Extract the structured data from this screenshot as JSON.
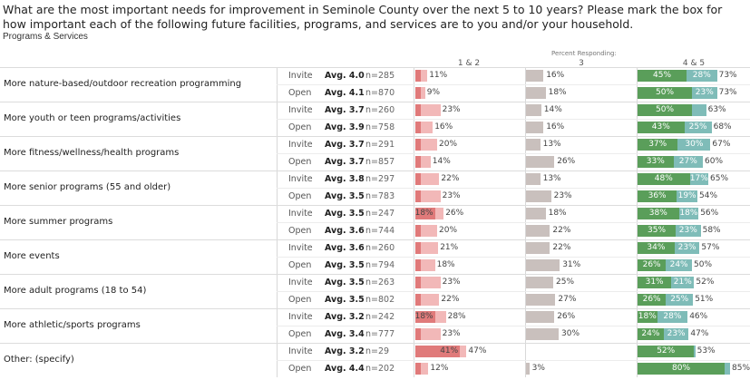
{
  "title": "What are the most important needs for improvement in Seminole County over the next 5 to 10 years? Please mark the box for how important each of the following future facilities, programs, and services are to you and/or your household.",
  "subtitle": "Programs & Services",
  "header": {
    "percent_responding": "Percent Responding:",
    "col_low": "1 & 2",
    "col_mid": "3",
    "col_high": "4 & 5"
  },
  "colors": {
    "low_light": "#f2b8b8",
    "low_dark": "#e07a7a",
    "mid": "#c9c0bd",
    "high_dark": "#5a9e5a",
    "high_light": "#7fbcb8"
  },
  "chart_data": {
    "type": "bar",
    "stacked_diverging": true,
    "columns": [
      "1 & 2",
      "3",
      "4 & 5"
    ],
    "categories": [
      "More nature-based/outdoor recreation programming",
      "More youth or teen programs/activities",
      "More fitness/wellness/health programs",
      "More senior programs (55 and older)",
      "More summer programs",
      "More events",
      "More adult programs (18 to 54)",
      "More athletic/sports programs",
      "Other: (specify)"
    ],
    "rows": [
      {
        "label": "More nature-based/outdoor recreation programming",
        "type": "Invite",
        "avg": "Avg. 4.0",
        "n": "n=285",
        "low_dark": 0,
        "low_total": "11%",
        "low_total_v": 11,
        "mid": "16%",
        "mid_v": 16,
        "high_dark": "45%",
        "high_dark_v": 45,
        "high_light": "28%",
        "high_light_v": 28,
        "high_total": "73%"
      },
      {
        "label": "More nature-based/outdoor recreation programming",
        "type": "Open",
        "avg": "Avg. 4.1",
        "n": "n=870",
        "low_dark": 0,
        "low_total": "9%",
        "low_total_v": 9,
        "mid": "18%",
        "mid_v": 18,
        "high_dark": "50%",
        "high_dark_v": 50,
        "high_light": "23%",
        "high_light_v": 23,
        "high_total": "73%"
      },
      {
        "label": "More youth or teen programs/activities",
        "type": "Invite",
        "avg": "Avg. 3.7",
        "n": "n=260",
        "low_dark": 0,
        "low_total": "23%",
        "low_total_v": 23,
        "mid": "14%",
        "mid_v": 14,
        "high_dark": "50%",
        "high_dark_v": 50,
        "high_light": "",
        "high_light_v": 13,
        "high_total": "63%"
      },
      {
        "label": "More youth or teen programs/activities",
        "type": "Open",
        "avg": "Avg. 3.9",
        "n": "n=758",
        "low_dark": 0,
        "low_total": "16%",
        "low_total_v": 16,
        "mid": "16%",
        "mid_v": 16,
        "high_dark": "43%",
        "high_dark_v": 43,
        "high_light": "25%",
        "high_light_v": 25,
        "high_total": "68%"
      },
      {
        "label": "More fitness/wellness/health programs",
        "type": "Invite",
        "avg": "Avg. 3.7",
        "n": "n=291",
        "low_dark": 0,
        "low_total": "20%",
        "low_total_v": 20,
        "mid": "13%",
        "mid_v": 13,
        "high_dark": "37%",
        "high_dark_v": 37,
        "high_light": "30%",
        "high_light_v": 30,
        "high_total": "67%"
      },
      {
        "label": "More fitness/wellness/health programs",
        "type": "Open",
        "avg": "Avg. 3.7",
        "n": "n=857",
        "low_dark": 0,
        "low_total": "14%",
        "low_total_v": 14,
        "mid": "26%",
        "mid_v": 26,
        "high_dark": "33%",
        "high_dark_v": 33,
        "high_light": "27%",
        "high_light_v": 27,
        "high_total": "60%"
      },
      {
        "label": "More senior programs (55 and older)",
        "type": "Invite",
        "avg": "Avg. 3.8",
        "n": "n=297",
        "low_dark": 0,
        "low_total": "22%",
        "low_total_v": 22,
        "mid": "13%",
        "mid_v": 13,
        "high_dark": "48%",
        "high_dark_v": 48,
        "high_light": "17%",
        "high_light_v": 17,
        "high_total": "65%"
      },
      {
        "label": "More senior programs (55 and older)",
        "type": "Open",
        "avg": "Avg. 3.5",
        "n": "n=783",
        "low_dark": 0,
        "low_total": "23%",
        "low_total_v": 23,
        "mid": "23%",
        "mid_v": 23,
        "high_dark": "36%",
        "high_dark_v": 36,
        "high_light": "19%",
        "high_light_v": 19,
        "high_total": "54%"
      },
      {
        "label": "More summer programs",
        "type": "Invite",
        "avg": "Avg. 3.5",
        "n": "n=247",
        "low_dark": "18%",
        "low_dark_v": 18,
        "low_total": "26%",
        "low_total_v": 26,
        "mid": "18%",
        "mid_v": 18,
        "high_dark": "38%",
        "high_dark_v": 38,
        "high_light": "18%",
        "high_light_v": 18,
        "high_total": "56%"
      },
      {
        "label": "More summer programs",
        "type": "Open",
        "avg": "Avg. 3.6",
        "n": "n=744",
        "low_dark": 0,
        "low_total": "20%",
        "low_total_v": 20,
        "mid": "22%",
        "mid_v": 22,
        "high_dark": "35%",
        "high_dark_v": 35,
        "high_light": "23%",
        "high_light_v": 23,
        "high_total": "58%"
      },
      {
        "label": "More events",
        "type": "Invite",
        "avg": "Avg. 3.6",
        "n": "n=260",
        "low_dark": 0,
        "low_total": "21%",
        "low_total_v": 21,
        "mid": "22%",
        "mid_v": 22,
        "high_dark": "34%",
        "high_dark_v": 34,
        "high_light": "23%",
        "high_light_v": 23,
        "high_total": "57%"
      },
      {
        "label": "More events",
        "type": "Open",
        "avg": "Avg. 3.5",
        "n": "n=794",
        "low_dark": 0,
        "low_total": "18%",
        "low_total_v": 18,
        "mid": "31%",
        "mid_v": 31,
        "high_dark": "26%",
        "high_dark_v": 26,
        "high_light": "24%",
        "high_light_v": 24,
        "high_total": "50%"
      },
      {
        "label": "More adult programs (18 to 54)",
        "type": "Invite",
        "avg": "Avg. 3.5",
        "n": "n=263",
        "low_dark": 0,
        "low_total": "23%",
        "low_total_v": 23,
        "mid": "25%",
        "mid_v": 25,
        "high_dark": "31%",
        "high_dark_v": 31,
        "high_light": "21%",
        "high_light_v": 21,
        "high_total": "52%"
      },
      {
        "label": "More adult programs (18 to 54)",
        "type": "Open",
        "avg": "Avg. 3.5",
        "n": "n=802",
        "low_dark": 0,
        "low_total": "22%",
        "low_total_v": 22,
        "mid": "27%",
        "mid_v": 27,
        "high_dark": "26%",
        "high_dark_v": 26,
        "high_light": "25%",
        "high_light_v": 25,
        "high_total": "51%"
      },
      {
        "label": "More athletic/sports programs",
        "type": "Invite",
        "avg": "Avg. 3.2",
        "n": "n=242",
        "low_dark": "18%",
        "low_dark_v": 18,
        "low_total": "28%",
        "low_total_v": 28,
        "mid": "26%",
        "mid_v": 26,
        "high_dark": "18%",
        "high_dark_v": 18,
        "high_light": "28%",
        "high_light_v": 28,
        "high_total": "46%"
      },
      {
        "label": "More athletic/sports programs",
        "type": "Open",
        "avg": "Avg. 3.4",
        "n": "n=777",
        "low_dark": 0,
        "low_total": "23%",
        "low_total_v": 23,
        "mid": "30%",
        "mid_v": 30,
        "high_dark": "24%",
        "high_dark_v": 24,
        "high_light": "23%",
        "high_light_v": 23,
        "high_total": "47%"
      },
      {
        "label": "Other: (specify)",
        "type": "Invite",
        "avg": "Avg. 3.2",
        "n": "n=29",
        "low_dark": "41%",
        "low_dark_v": 41,
        "low_total": "47%",
        "low_total_v": 47,
        "mid": "",
        "mid_v": 0,
        "high_dark": "52%",
        "high_dark_v": 52,
        "high_light": "",
        "high_light_v": 1,
        "high_total": "53%"
      },
      {
        "label": "Other: (specify)",
        "type": "Open",
        "avg": "Avg. 4.4",
        "n": "n=202",
        "low_dark": 0,
        "low_total": "12%",
        "low_total_v": 12,
        "mid": "3%",
        "mid_v": 3,
        "high_dark": "80%",
        "high_dark_v": 80,
        "high_light": "",
        "high_light_v": 5,
        "high_total": "85%"
      }
    ]
  }
}
